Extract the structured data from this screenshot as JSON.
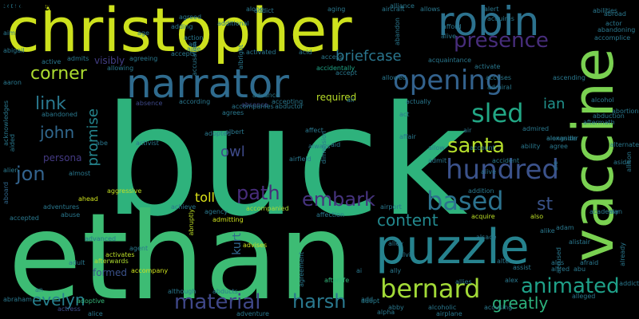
{
  "words": [
    {
      "text": "buck",
      "color": "#2eb27c"
    },
    {
      "text": "ethan",
      "color": "#3dbc74"
    },
    {
      "text": "christopher",
      "color": "#cde11d"
    },
    {
      "text": "robin",
      "color": "#2c728e"
    },
    {
      "text": "vaccine",
      "color": "#7ad151"
    },
    {
      "text": "narrator",
      "color": "#2f6b8e"
    },
    {
      "text": "puzzle",
      "color": "#26828e"
    },
    {
      "text": "opening",
      "color": "#33628d"
    },
    {
      "text": "hundred",
      "color": "#3b528b"
    },
    {
      "text": "bernard",
      "color": "#a2da37"
    },
    {
      "text": "sled",
      "color": "#22a785"
    },
    {
      "text": "presence",
      "color": "#472d7b"
    },
    {
      "text": "based",
      "color": "#2c728e"
    },
    {
      "text": "santa",
      "color": "#b5de2b"
    },
    {
      "text": "animated",
      "color": "#1fa088"
    },
    {
      "text": "embark",
      "color": "#46337e"
    },
    {
      "text": "material",
      "color": "#3f4788"
    },
    {
      "text": "promise",
      "color": "#25858e"
    },
    {
      "text": "path",
      "color": "#472c7a"
    },
    {
      "text": "content",
      "color": "#23898e"
    },
    {
      "text": "harsh",
      "color": "#2a788e"
    },
    {
      "text": "greatly",
      "color": "#2db27d"
    },
    {
      "text": "corner",
      "color": "#addc30"
    },
    {
      "text": "link",
      "color": "#2a788e"
    },
    {
      "text": "john",
      "color": "#31688e"
    },
    {
      "text": "jon",
      "color": "#33638d"
    },
    {
      "text": "evelyn",
      "color": "#27808e"
    },
    {
      "text": "briefcase",
      "color": "#2a768e"
    },
    {
      "text": "ian",
      "color": "#21918c"
    },
    {
      "text": "st",
      "color": "#3a538b"
    },
    {
      "text": "toll",
      "color": "#dde318"
    },
    {
      "text": "owl",
      "color": "#3e4a89"
    },
    {
      "text": "persona",
      "color": "#443a83"
    },
    {
      "text": "kurt",
      "color": "#31688e"
    },
    {
      "text": "visibly",
      "color": "#433e85"
    },
    {
      "text": "required",
      "color": "#b8de29"
    },
    {
      "text": "formed",
      "color": "#3b528b"
    },
    {
      "text": "afterwards",
      "color": "#addc30"
    },
    {
      "text": "aggressive",
      "color": "#c2df23"
    },
    {
      "text": "accompanied",
      "color": "#a8db34"
    },
    {
      "text": "aboard",
      "color": "#31688e"
    },
    {
      "text": "accidentally",
      "color": "#20a486"
    },
    {
      "text": "acting",
      "color": "#2a788e"
    },
    {
      "text": "accomplice",
      "color": "#2a778e"
    },
    {
      "text": "alive",
      "color": "#2c728e"
    },
    {
      "text": "also",
      "color": "#bddf26"
    },
    {
      "text": "alike",
      "color": "#2a788e"
    },
    {
      "text": "adventure",
      "color": "#2a788e"
    },
    {
      "text": "actress",
      "color": "#3e4c8a"
    },
    {
      "text": "adoptive",
      "color": "#35b779"
    },
    {
      "text": "adopt",
      "color": "#287d8e"
    },
    {
      "text": "alliance",
      "color": "#2a788e"
    },
    {
      "text": "advises",
      "color": "#cde11d"
    },
    {
      "text": "ahead",
      "color": "#cde11d"
    },
    {
      "text": "acquire",
      "color": "#bddf26"
    },
    {
      "text": "abandon",
      "color": "#2a778e"
    },
    {
      "text": "absence",
      "color": "#3e4989"
    },
    {
      "text": "afterlife",
      "color": "#32b67a"
    },
    {
      "text": "alien",
      "color": "#2a788e"
    },
    {
      "text": "allows",
      "color": "#2a788e"
    },
    {
      "text": "aging",
      "color": "#2a788e"
    },
    {
      "text": "along",
      "color": "#2a788e"
    },
    {
      "text": "aircraft",
      "color": "#2a788e"
    },
    {
      "text": "admits",
      "color": "#2a788e"
    },
    {
      "text": "agreeing",
      "color": "#2a788e"
    },
    {
      "text": "accepts",
      "color": "#2a788e"
    },
    {
      "text": "achieve",
      "color": "#2a788e"
    },
    {
      "text": "abruptly",
      "color": "#bddf26"
    },
    {
      "text": "agency",
      "color": "#2a788e"
    },
    {
      "text": "admitting",
      "color": "#cde11d"
    },
    {
      "text": "affection",
      "color": "#2a788e"
    },
    {
      "text": "airport",
      "color": "#2a788e"
    },
    {
      "text": "addition",
      "color": "#2a788e"
    },
    {
      "text": "abuse",
      "color": "#2a788e"
    },
    {
      "text": "accompany",
      "color": "#cde11d"
    },
    {
      "text": "activates",
      "color": "#bddf26"
    },
    {
      "text": "agent",
      "color": "#2a788e"
    },
    {
      "text": "adult",
      "color": "#2a788e"
    },
    {
      "text": "although",
      "color": "#2a788e"
    },
    {
      "text": "abducts",
      "color": "#2a788e"
    },
    {
      "text": "abby",
      "color": "#2a788e"
    },
    {
      "text": "alcoholic",
      "color": "#2a788e"
    },
    {
      "text": "airplane",
      "color": "#2a788e"
    },
    {
      "text": "accusing",
      "color": "#2a788e"
    },
    {
      "text": "alpha",
      "color": "#2a788e"
    },
    {
      "text": "alice",
      "color": "#2a788e"
    },
    {
      "text": "abductor",
      "color": "#2a788e"
    },
    {
      "text": "advance",
      "color": "#2a788e"
    },
    {
      "text": "absence",
      "color": "#3e4989"
    },
    {
      "text": "according",
      "color": "#2a788e"
    },
    {
      "text": "agrees",
      "color": "#2a788e"
    },
    {
      "text": "albert",
      "color": "#2a788e"
    },
    {
      "text": "adopted",
      "color": "#2a788e"
    },
    {
      "text": "activist",
      "color": "#2a788e"
    },
    {
      "text": "affair",
      "color": "#2a788e"
    },
    {
      "text": "allow",
      "color": "#2a788e"
    },
    {
      "text": "airfield",
      "color": "#2a788e"
    },
    {
      "text": "admit",
      "color": "#2a788e"
    },
    {
      "text": "accident",
      "color": "#2a788e"
    },
    {
      "text": "admired",
      "color": "#2a788e"
    },
    {
      "text": "alongside",
      "color": "#2a788e"
    },
    {
      "text": "agree",
      "color": "#2a788e"
    },
    {
      "text": "ability",
      "color": "#2a788e"
    },
    {
      "text": "alexander",
      "color": "#2a788e"
    },
    {
      "text": "aftermath",
      "color": "#2a788e"
    },
    {
      "text": "alcohol",
      "color": "#2a788e"
    },
    {
      "text": "abduction",
      "color": "#2a788e"
    },
    {
      "text": "abortion",
      "color": "#2a788e"
    },
    {
      "text": "alternate",
      "color": "#2a788e"
    },
    {
      "text": "aside",
      "color": "#2a788e"
    },
    {
      "text": "allison",
      "color": "#2a788e"
    },
    {
      "text": "alan",
      "color": "#2a788e"
    },
    {
      "text": "academy",
      "color": "#2a788e"
    },
    {
      "text": "afraid",
      "color": "#2a788e"
    },
    {
      "text": "already",
      "color": "#2a788e"
    },
    {
      "text": "abu",
      "color": "#2a788e"
    },
    {
      "text": "accused",
      "color": "#2a788e"
    },
    {
      "text": "alistair",
      "color": "#2a788e"
    },
    {
      "text": "alfred",
      "color": "#2a788e"
    },
    {
      "text": "alleged",
      "color": "#2a788e"
    },
    {
      "text": "activate",
      "color": "#2a788e"
    },
    {
      "text": "accuses",
      "color": "#2a788e"
    },
    {
      "text": "admiral",
      "color": "#2a788e"
    },
    {
      "text": "actually",
      "color": "#2a788e"
    },
    {
      "text": "account",
      "color": "#2a788e"
    },
    {
      "text": "actor",
      "color": "#2a788e"
    },
    {
      "text": "abilities",
      "color": "#2a788e"
    },
    {
      "text": "abroad",
      "color": "#2a788e"
    },
    {
      "text": "abandoning",
      "color": "#2a788e"
    },
    {
      "text": "alert",
      "color": "#2a788e"
    },
    {
      "text": "acquires",
      "color": "#2a788e"
    },
    {
      "text": "allowed",
      "color": "#2a788e"
    },
    {
      "text": "access",
      "color": "#2a788e"
    },
    {
      "text": "accept",
      "color": "#2a788e"
    },
    {
      "text": "activated",
      "color": "#2a788e"
    },
    {
      "text": "allowing",
      "color": "#2a788e"
    },
    {
      "text": "active",
      "color": "#2a788e"
    },
    {
      "text": "abigail",
      "color": "#2a788e"
    },
    {
      "text": "aaron",
      "color": "#2a788e"
    },
    {
      "text": "acknowledges",
      "color": "#2a788e"
    },
    {
      "text": "aided",
      "color": "#2a788e"
    },
    {
      "text": "abandoned",
      "color": "#2a788e"
    },
    {
      "text": "accepting",
      "color": "#2a788e"
    },
    {
      "text": "accompanies",
      "color": "#2a788e"
    },
    {
      "text": "additional",
      "color": "#2a788e"
    },
    {
      "text": "adding",
      "color": "#2a788e"
    },
    {
      "text": "addict",
      "color": "#2a788e"
    },
    {
      "text": "agreed",
      "color": "#2a788e"
    },
    {
      "text": "acquaintance",
      "color": "#2a788e"
    },
    {
      "text": "allies",
      "color": "#2a788e"
    },
    {
      "text": "alex",
      "color": "#2a788e"
    },
    {
      "text": "adventures",
      "color": "#2a788e"
    },
    {
      "text": "advanced",
      "color": "#2a788e"
    },
    {
      "text": "accepted",
      "color": "#2a788e"
    },
    {
      "text": "almost",
      "color": "#2a788e"
    },
    {
      "text": "agreement",
      "color": "#2a788e"
    },
    {
      "text": "alley",
      "color": "#2a788e"
    },
    {
      "text": "ally",
      "color": "#2a788e"
    },
    {
      "text": "aid",
      "color": "#2a788e"
    },
    {
      "text": "dimension",
      "color": "#2a788e"
    },
    {
      "text": "always",
      "color": "#2a788e"
    },
    {
      "text": "affect",
      "color": "#2a788e"
    },
    {
      "text": "afford",
      "color": "#2a788e"
    },
    {
      "text": "acid",
      "color": "#2a788e"
    },
    {
      "text": "act",
      "color": "#2a788e"
    },
    {
      "text": "albright",
      "color": "#2a788e"
    },
    {
      "text": "air",
      "color": "#2a788e"
    },
    {
      "text": "ale",
      "color": "#2a788e"
    },
    {
      "text": "alive",
      "color": "#2a788e"
    },
    {
      "text": "ai",
      "color": "#2a788e"
    },
    {
      "text": "abraham",
      "color": "#2a788e"
    },
    {
      "text": "aim",
      "color": "#2a788e"
    },
    {
      "text": "ali",
      "color": "#2a788e"
    },
    {
      "text": "aide",
      "color": "#2a788e"
    },
    {
      "text": "accusation",
      "color": "#2a788e"
    },
    {
      "text": "action",
      "color": "#2a788e"
    },
    {
      "text": "ad",
      "color": "#2a788e"
    },
    {
      "text": "abe",
      "color": "#2a788e"
    },
    {
      "text": "age",
      "color": "#2a788e"
    },
    {
      "text": "an",
      "color": "#2a788e"
    },
    {
      "text": "addict",
      "color": "#2a788e"
    },
    {
      "text": "adam",
      "color": "#2a788e"
    },
    {
      "text": "alsace",
      "color": "#2a788e"
    },
    {
      "text": "alvin",
      "color": "#2a788e"
    },
    {
      "text": "ascending",
      "color": "#2a788e"
    },
    {
      "text": "add",
      "color": "#2a788e"
    },
    {
      "text": "alter",
      "color": "#2a788e"
    },
    {
      "text": "assist",
      "color": "#2a788e"
    },
    {
      "text": "ales",
      "color": "#2a788e"
    },
    {
      "text": "able",
      "color": "#2a788e"
    },
    {
      "text": "adopt",
      "color": "#2a788e"
    },
    {
      "text": "accurate",
      "color": "#2a788e"
    },
    {
      "text": "abusive",
      "color": "#2a788e"
    },
    {
      "text": "acknowledge",
      "color": "#2a788e"
    }
  ]
}
